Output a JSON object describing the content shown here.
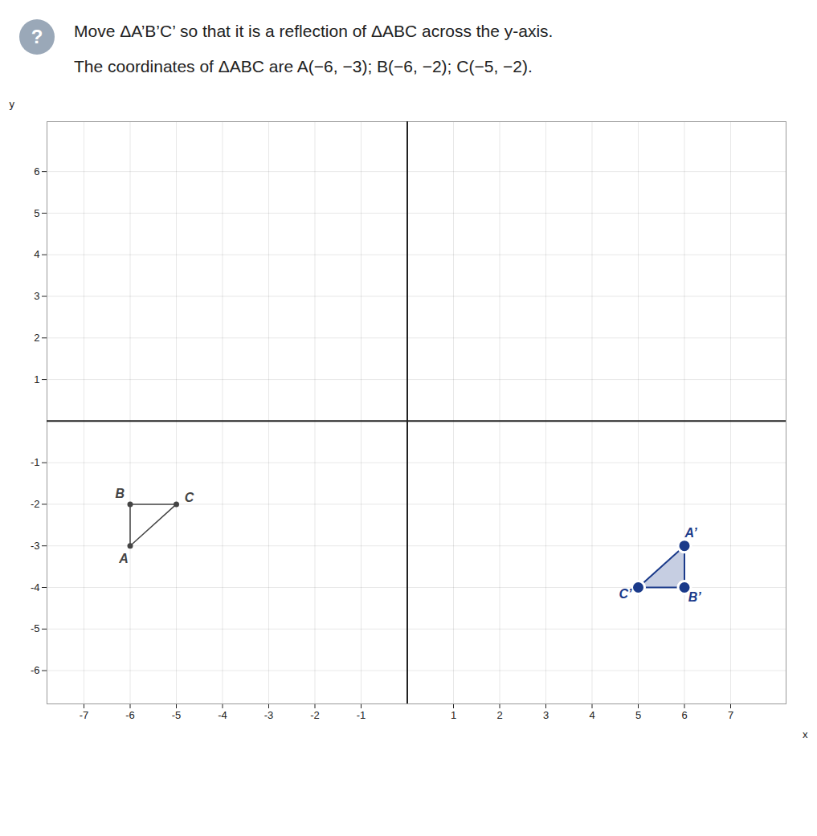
{
  "chart_data": {
    "type": "polygon",
    "title": "Move ΔA’B’C’ so that it is a reflection of ΔABC across the y‐axis.",
    "subtitle": "The coordinates of ΔABC are A(−6, −3); B(−6, −2); C(−5, −2).",
    "annotations": [
      "?"
    ],
    "x_label": "x",
    "y_label": "y",
    "xlim": [
      -7.8,
      8.2
    ],
    "ylim": [
      -6.8,
      7.2
    ],
    "xticks": [
      -7,
      -6,
      -5,
      -4,
      -3,
      -2,
      -1,
      1,
      2,
      3,
      4,
      5,
      6,
      7
    ],
    "yticks": [
      -6,
      -5,
      -4,
      -3,
      -2,
      -1,
      1,
      2,
      3,
      4,
      5,
      6
    ],
    "grid": true,
    "series": [
      {
        "type": "line",
        "color": "#444444",
        "x": [
          -6,
          -6,
          -5
        ],
        "y": [
          -3,
          -2,
          -2
        ],
        "point_labels": [
          "A",
          "B",
          "C"
        ]
      },
      {
        "type": "area",
        "color": "#1a3a8a",
        "x": [
          6,
          6,
          5
        ],
        "y": [
          -3,
          -4,
          -4
        ],
        "point_labels": [
          "A’",
          "B’",
          "C’"
        ]
      }
    ]
  }
}
